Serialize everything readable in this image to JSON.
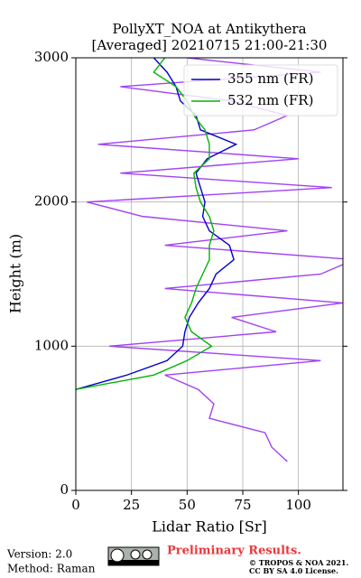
{
  "chart_data": {
    "type": "line",
    "title": [
      "PollyXT_NOA at Antikythera",
      "[Averaged] 20210715 21:00-21:30"
    ],
    "x_label": "Lidar Ratio [Sr]",
    "y_label": "Height (m)",
    "y": [
      200,
      300,
      400,
      500,
      600,
      700,
      800,
      900,
      1000,
      1100,
      1200,
      1300,
      1400,
      1500,
      1600,
      1700,
      1800,
      1900,
      2000,
      2100,
      2200,
      2300,
      2400,
      2500,
      2600,
      2700,
      2800,
      2900,
      3000
    ],
    "series": [
      {
        "color": "#a142f4",
        "values": [
          95,
          88,
          85,
          60,
          62,
          55,
          40,
          110,
          15,
          90,
          70,
          120,
          40,
          110,
          125,
          40,
          95,
          30,
          5,
          115,
          20,
          100,
          10,
          80,
          95,
          70,
          20,
          110,
          50
        ]
      },
      {
        "name": "355 nm (FR)",
        "color": "#0000cc",
        "values": [
          null,
          null,
          null,
          null,
          null,
          0,
          23,
          41,
          48,
          49,
          51,
          55,
          60,
          63,
          71,
          69,
          60,
          57,
          58,
          56,
          54,
          59,
          72,
          56,
          54,
          47,
          45,
          41,
          35
        ]
      },
      {
        "name": "532 nm (FR)",
        "color": "#00b400",
        "values": [
          null,
          null,
          null,
          null,
          null,
          0,
          35,
          50,
          61,
          52,
          49,
          52,
          54,
          57,
          60,
          60,
          62,
          60,
          56,
          54,
          53,
          60,
          60,
          58,
          53,
          50,
          45,
          35,
          40
        ]
      }
    ],
    "xlim": [
      0,
      120
    ],
    "xticks": [
      0,
      25,
      50,
      75,
      100
    ],
    "ylim": [
      0,
      3000
    ],
    "yticks": [
      0,
      1000,
      2000,
      3000
    ],
    "grid": true,
    "legend": "upper right",
    "footer": {
      "version": "Version: 2.0",
      "method": "Method: Raman",
      "status": "Preliminary Results.",
      "copyright": "© TROPOS & NOA 2021.",
      "license": "CC BY SA 4.0 License."
    }
  }
}
